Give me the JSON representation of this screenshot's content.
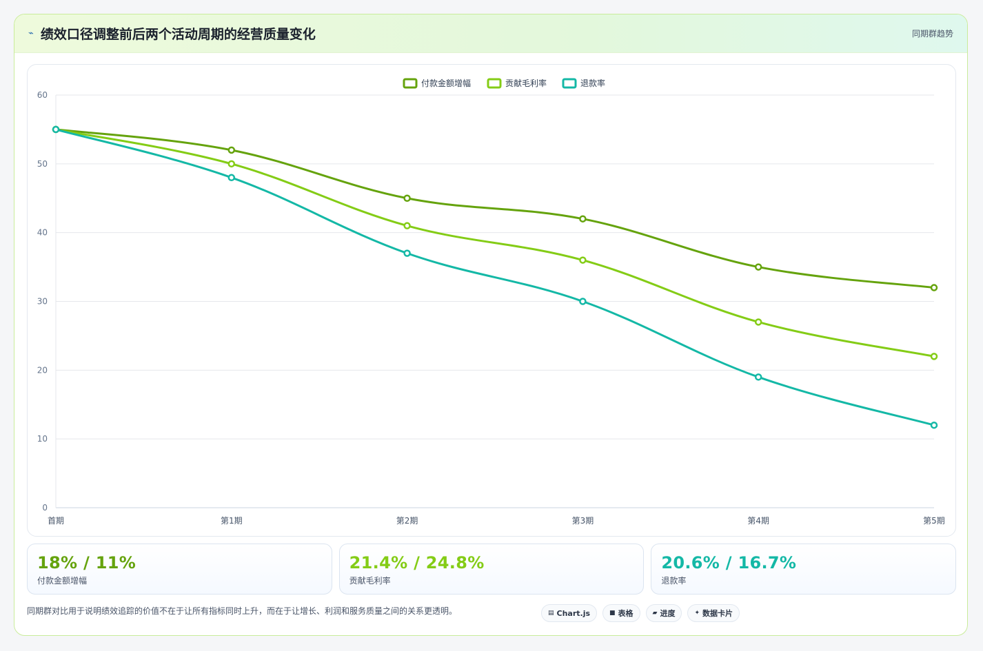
{
  "header": {
    "title_icon": "chart-line-icon",
    "title": "绩效口径调整前后两个活动周期的经营质量变化",
    "tag": "同期群趋势"
  },
  "chart_data": {
    "type": "line",
    "categories": [
      "首期",
      "第1期",
      "第2期",
      "第3期",
      "第4期",
      "第5期"
    ],
    "series": [
      {
        "name": "付款金额增幅",
        "color": "#65a30d",
        "values": [
          55,
          52,
          45,
          42,
          35,
          32
        ]
      },
      {
        "name": "贡献毛利率",
        "color": "#84cc16",
        "values": [
          55,
          50,
          41,
          36,
          27,
          22
        ]
      },
      {
        "name": "退款率",
        "color": "#14b8a6",
        "values": [
          55,
          48,
          37,
          30,
          19,
          12
        ]
      }
    ],
    "ylim": [
      0,
      60
    ],
    "yticks": [
      0,
      10,
      20,
      30,
      40,
      50,
      60
    ],
    "grid": true,
    "legend": "top-center",
    "smooth": true
  },
  "stats": [
    {
      "value": "18% / 11%",
      "label": "付款金额增幅",
      "color": "#65a30d"
    },
    {
      "value": "21.4% / 24.8%",
      "label": "贡献毛利率",
      "color": "#84cc16"
    },
    {
      "value": "20.6% / 16.7%",
      "label": "退款率",
      "color": "#14b8a6"
    }
  ],
  "footer": {
    "note": "同期群对比用于说明绩效追踪的价值不在于让所有指标同时上升，而在于让增长、利润和服务质量之间的关系更透明。",
    "chips": [
      {
        "icon": "chart-icon",
        "glyph": "▤",
        "label": "Chart.js"
      },
      {
        "icon": "table-icon",
        "glyph": "■",
        "label": "表格"
      },
      {
        "icon": "progress-icon",
        "glyph": "▰",
        "label": "进度"
      },
      {
        "icon": "card-icon",
        "glyph": "✦",
        "label": "数据卡片"
      }
    ]
  }
}
